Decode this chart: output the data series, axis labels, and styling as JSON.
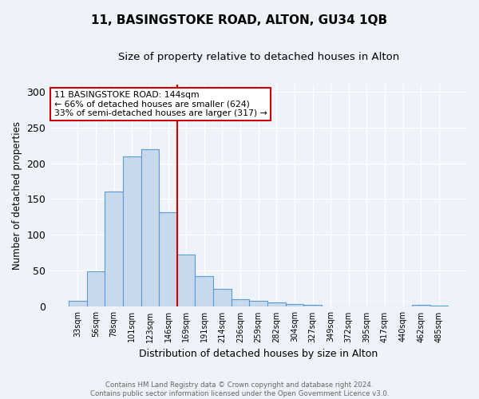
{
  "title": "11, BASINGSTOKE ROAD, ALTON, GU34 1QB",
  "subtitle": "Size of property relative to detached houses in Alton",
  "xlabel": "Distribution of detached houses by size in Alton",
  "ylabel": "Number of detached properties",
  "categories": [
    "33sqm",
    "56sqm",
    "78sqm",
    "101sqm",
    "123sqm",
    "146sqm",
    "169sqm",
    "191sqm",
    "214sqm",
    "236sqm",
    "259sqm",
    "282sqm",
    "304sqm",
    "327sqm",
    "349sqm",
    "372sqm",
    "395sqm",
    "417sqm",
    "440sqm",
    "462sqm",
    "485sqm"
  ],
  "values": [
    8,
    49,
    160,
    210,
    220,
    132,
    73,
    43,
    25,
    11,
    8,
    6,
    4,
    3,
    0,
    0,
    0,
    0,
    0,
    3,
    2
  ],
  "bar_color": "#c9d9ec",
  "bar_edge_color": "#5b9bd5",
  "vline_x": 5.5,
  "vline_color": "#cc0000",
  "annotation_text": "11 BASINGSTOKE ROAD: 144sqm\n← 66% of detached houses are smaller (624)\n33% of semi-detached houses are larger (317) →",
  "annotation_box_color": "white",
  "annotation_box_edge": "#cc0000",
  "ylim": [
    0,
    310
  ],
  "yticks": [
    0,
    50,
    100,
    150,
    200,
    250,
    300
  ],
  "footer": "Contains HM Land Registry data © Crown copyright and database right 2024.\nContains public sector information licensed under the Open Government Licence v3.0.",
  "bg_color": "#eef2f9",
  "title_fontsize": 11,
  "subtitle_fontsize": 9.5
}
